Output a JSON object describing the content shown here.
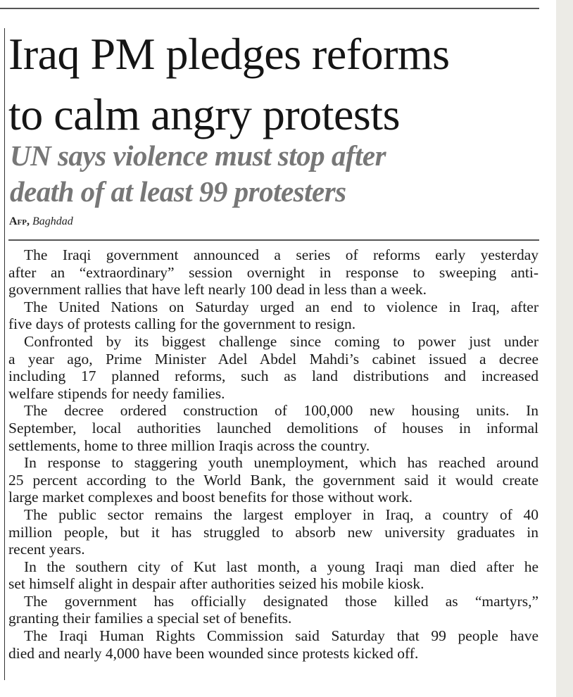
{
  "article": {
    "headline": [
      "Iraq PM pledges reforms",
      "to calm angry protests"
    ],
    "subhead": [
      "UN says violence must stop after",
      "death of at least 99 protesters"
    ],
    "byline": {
      "agency": "Afp,",
      "place": "Baghdad"
    },
    "paragraphs": [
      [
        "The Iraqi government announced a series of reforms early yesterday",
        "after an “extraordinary” session overnight in response to sweeping anti-",
        "government rallies that have left nearly 100 dead in less than a week."
      ],
      [
        "The United Nations on Saturday urged an end to violence in Iraq, after",
        "five days of protests calling for the government to resign."
      ],
      [
        "Confronted by its biggest challenge since coming to power just under",
        "a year ago, Prime Minister Adel Abdel Mahdi’s cabinet issued a decree",
        "including 17 planned reforms, such as land distributions and increased",
        "welfare stipends for needy families."
      ],
      [
        "The decree ordered construction of 100,000 new housing units. In",
        "September, local authorities launched demolitions of houses in informal",
        "settlements, home to three million Iraqis across the country."
      ],
      [
        "In response to staggering youth unemployment, which has reached around",
        "25 percent according to the World Bank, the government said it would create",
        "large market complexes and boost benefits for those without work."
      ],
      [
        "The public sector remains the largest employer in Iraq, a country of 40",
        "million people, but it has struggled to absorb new university graduates in",
        "recent years."
      ],
      [
        "In the southern city of Kut last month, a young Iraqi man died after he",
        "set himself alight in despair after authorities seized his mobile kiosk."
      ],
      [
        "The government has officially designated those killed as “martyrs,”",
        "granting their families a special set of benefits."
      ],
      [
        "The Iraqi Human Rights Commission said Saturday that 99 people have",
        "died and nearly 4,000 have been wounded since protests kicked off."
      ]
    ]
  }
}
